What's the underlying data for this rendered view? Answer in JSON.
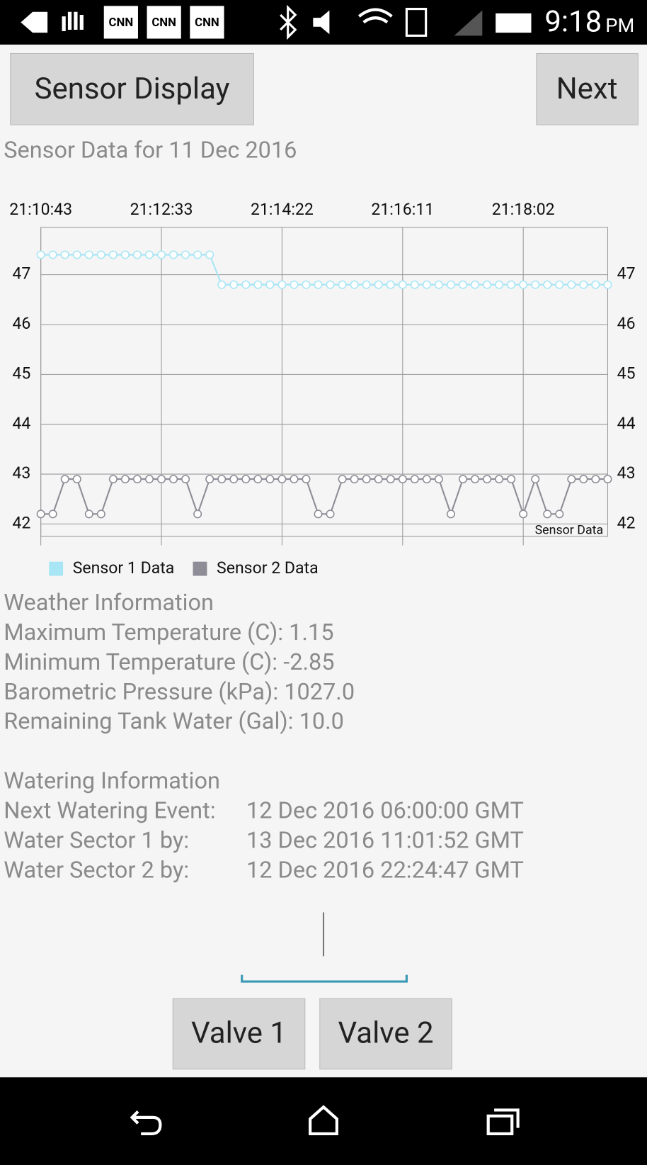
{
  "status_bar": {
    "notifications": [
      "CNN",
      "CNN",
      "CNN"
    ],
    "time": "9:18",
    "ampm": "PM"
  },
  "header": {
    "left_button": "Sensor Display",
    "right_button": "Next"
  },
  "chart_data": {
    "type": "line",
    "title": "Sensor Data for 11 Dec 2016",
    "annotation": "Sensor Data",
    "xlim": [
      0,
      47
    ],
    "xticks": [
      {
        "value": 0,
        "label": "21:10:43"
      },
      {
        "value": 10,
        "label": "21:12:33"
      },
      {
        "value": 20,
        "label": "21:14:22"
      },
      {
        "value": 30,
        "label": "21:16:11"
      },
      {
        "value": 40,
        "label": "21:18:02"
      }
    ],
    "ylim": [
      41.75,
      47.95
    ],
    "yticks": [
      42,
      43,
      44,
      45,
      46,
      47
    ],
    "grid": true,
    "series": [
      {
        "name": "Sensor 1 Data",
        "color": "#a8e6f5",
        "values": [
          47.4,
          47.4,
          47.4,
          47.4,
          47.4,
          47.4,
          47.4,
          47.4,
          47.4,
          47.4,
          47.4,
          47.4,
          47.4,
          47.4,
          47.4,
          46.8,
          46.8,
          46.8,
          46.8,
          46.8,
          46.8,
          46.8,
          46.8,
          46.8,
          46.8,
          46.8,
          46.8,
          46.8,
          46.8,
          46.8,
          46.8,
          46.8,
          46.8,
          46.8,
          46.8,
          46.8,
          46.8,
          46.8,
          46.8,
          46.8,
          46.8,
          46.8,
          46.8,
          46.8,
          46.8,
          46.8,
          46.8,
          46.8
        ]
      },
      {
        "name": "Sensor 2 Data",
        "color": "#8e8c96",
        "values": [
          42.2,
          42.2,
          42.9,
          42.9,
          42.2,
          42.2,
          42.9,
          42.9,
          42.9,
          42.9,
          42.9,
          42.9,
          42.9,
          42.2,
          42.9,
          42.9,
          42.9,
          42.9,
          42.9,
          42.9,
          42.9,
          42.9,
          42.9,
          42.2,
          42.2,
          42.9,
          42.9,
          42.9,
          42.9,
          42.9,
          42.9,
          42.9,
          42.9,
          42.9,
          42.2,
          42.9,
          42.9,
          42.9,
          42.9,
          42.9,
          42.2,
          42.9,
          42.2,
          42.2,
          42.9,
          42.9,
          42.9,
          42.9
        ]
      }
    ]
  },
  "weather": {
    "title": "Weather Information",
    "rows": [
      "Maximum Temperature (C): 1.15",
      "Minimum Temperature (C): -2.85",
      "Barometric Pressure (kPa): 1027.0",
      "Remaining Tank Water (Gal): 10.0"
    ]
  },
  "watering": {
    "title": "Watering Information",
    "rows": [
      [
        "Next Watering Event:",
        "12 Dec 2016 06:00:00 GMT"
      ],
      [
        "Water Sector 1 by:",
        "13 Dec 2016 11:01:52 GMT"
      ],
      [
        "Water Sector 2 by:",
        "12 Dec 2016 22:24:47 GMT"
      ]
    ]
  },
  "valves": [
    "Valve 1",
    "Valve 2"
  ]
}
